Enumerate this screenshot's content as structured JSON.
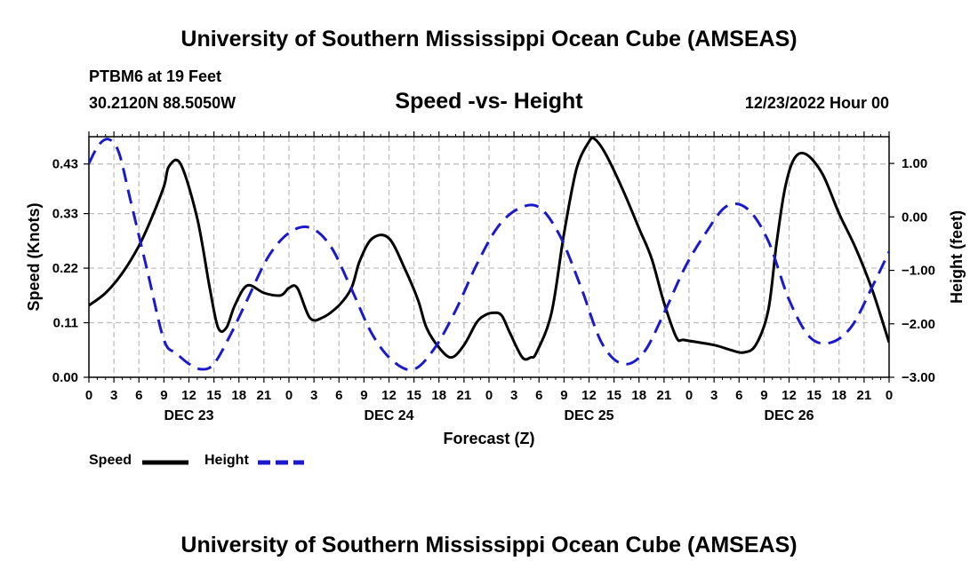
{
  "header": {
    "title": "University of Southern Mississippi Ocean Cube (AMSEAS)",
    "station": "PTBM6 at 19 Feet",
    "location": "30.2120N  88.5050W",
    "date": "12/23/2022 Hour 00"
  },
  "footer": {
    "title": "University of Southern Mississippi Ocean Cube (AMSEAS)"
  },
  "chart_data": {
    "type": "line",
    "title": "Speed -vs- Height",
    "xlabel": "Forecast (Z)",
    "ylabel_left": "Speed (Knots)",
    "ylabel_right": "Height (feet)",
    "x_range_hours": [
      0,
      96
    ],
    "ylim_left": [
      0,
      0.485
    ],
    "ylim_right": [
      -3.0,
      1.5
    ],
    "left_ticks": [
      0.0,
      0.11,
      0.22,
      0.33,
      0.43
    ],
    "left_tick_labels": [
      "0.00",
      "0.11",
      "0.22",
      "0.33",
      "0.43"
    ],
    "right_ticks": [
      1.0,
      0.0,
      -1.0,
      -2.0,
      -3.0
    ],
    "right_tick_labels": [
      "1.00",
      "0.00",
      "−1.00",
      "−2.00",
      "−3.00"
    ],
    "x_tick_labels": [
      "0",
      "3",
      "6",
      "9",
      "12",
      "15",
      "18",
      "21",
      "0",
      "3",
      "6",
      "9",
      "12",
      "15",
      "18",
      "21",
      "0",
      "3",
      "6",
      "9",
      "12",
      "15",
      "18",
      "21",
      "0",
      "3",
      "6",
      "9",
      "12",
      "15",
      "18",
      "21",
      "0"
    ],
    "day_labels": [
      {
        "hour": 12,
        "label": "DEC 23"
      },
      {
        "hour": 36,
        "label": "DEC 24"
      },
      {
        "hour": 60,
        "label": "DEC 25"
      },
      {
        "hour": 84,
        "label": "DEC 26"
      }
    ],
    "grid": true,
    "series": [
      {
        "name": "Speed",
        "axis": "left",
        "color": "#000000",
        "style": "solid",
        "x": [
          0,
          2,
          4,
          6,
          7.5,
          9,
          9.6,
          11,
          13,
          14.5,
          15.5,
          16.5,
          17.5,
          19,
          21,
          23,
          24,
          25,
          26.5,
          28,
          30,
          31.5,
          32.5,
          34,
          36,
          38,
          39.5,
          40.5,
          42,
          43.5,
          45,
          46.5,
          47.5,
          48.5,
          49.5,
          50.5,
          52,
          53,
          53.7,
          55.5,
          57,
          58.5,
          60,
          60.7,
          62,
          64,
          66,
          67.5,
          69,
          70.5,
          71.5,
          75,
          77,
          78.5,
          80,
          81.5,
          82.5,
          83.5,
          84.6,
          86,
          88,
          90,
          92,
          94,
          96
        ],
        "values": [
          0.145,
          0.17,
          0.21,
          0.265,
          0.32,
          0.385,
          0.425,
          0.43,
          0.32,
          0.18,
          0.1,
          0.1,
          0.145,
          0.185,
          0.17,
          0.165,
          0.18,
          0.18,
          0.12,
          0.12,
          0.145,
          0.18,
          0.235,
          0.28,
          0.28,
          0.215,
          0.155,
          0.1,
          0.06,
          0.04,
          0.065,
          0.11,
          0.125,
          0.13,
          0.125,
          0.09,
          0.04,
          0.04,
          0.05,
          0.13,
          0.29,
          0.42,
          0.475,
          0.48,
          0.45,
          0.38,
          0.3,
          0.24,
          0.15,
          0.08,
          0.075,
          0.065,
          0.055,
          0.05,
          0.065,
          0.135,
          0.27,
          0.38,
          0.44,
          0.45,
          0.41,
          0.33,
          0.26,
          0.175,
          0.07
        ]
      },
      {
        "name": "Height",
        "axis": "right",
        "color": "#1a1acc",
        "style": "dashed",
        "x": [
          0,
          1.2,
          2.4,
          3.6,
          5,
          7,
          9,
          10.5,
          12,
          13.5,
          15,
          17,
          19,
          21.5,
          24,
          26.5,
          29,
          31.5,
          34,
          36.5,
          39,
          41.5,
          44,
          46.5,
          49,
          51.5,
          54,
          56.5,
          59,
          61.5,
          64,
          66.5,
          69,
          71.5,
          74,
          76.5,
          79,
          81.5,
          84,
          86.5,
          89,
          91.5,
          94,
          96
        ],
        "values": [
          1.0,
          1.35,
          1.45,
          1.2,
          0.3,
          -1.0,
          -2.3,
          -2.55,
          -2.75,
          -2.85,
          -2.75,
          -2.2,
          -1.55,
          -0.75,
          -0.3,
          -0.2,
          -0.55,
          -1.35,
          -2.2,
          -2.7,
          -2.85,
          -2.45,
          -1.75,
          -0.9,
          -0.2,
          0.15,
          0.18,
          -0.35,
          -1.3,
          -2.35,
          -2.75,
          -2.55,
          -1.8,
          -0.95,
          -0.3,
          0.2,
          0.15,
          -0.45,
          -1.55,
          -2.25,
          -2.35,
          -2.05,
          -1.3,
          -0.65
        ]
      }
    ],
    "legend": [
      {
        "label": "Speed",
        "color": "#000000",
        "style": "solid"
      },
      {
        "label": "Height",
        "color": "#1a1acc",
        "style": "dashed"
      }
    ],
    "legend_placement": "bottom-left"
  }
}
